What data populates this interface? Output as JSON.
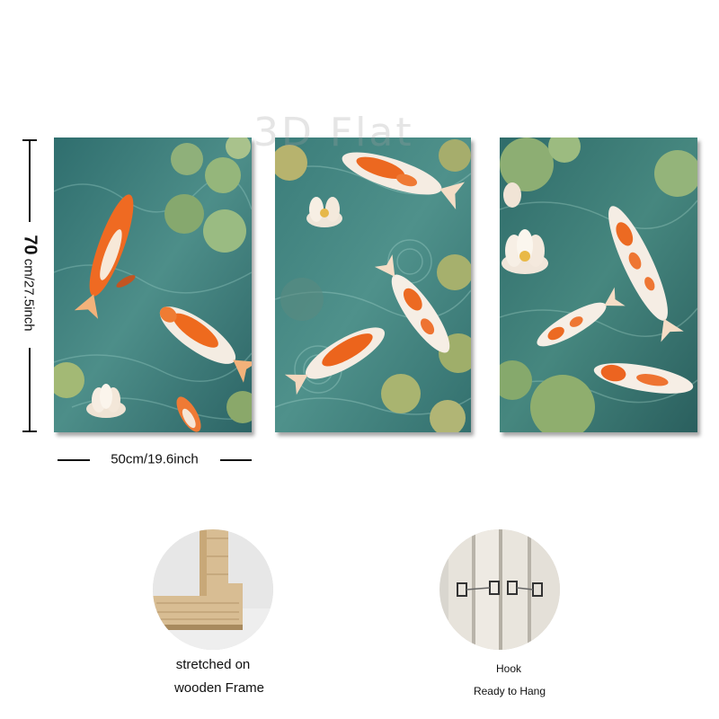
{
  "watermark": "3D Flat",
  "dimensions": {
    "height_value": "70",
    "height_unit": "cm/27.5inch",
    "width_label": "50cm/19.6inch"
  },
  "features": {
    "frame_line1": "stretched on",
    "frame_line2": "wooden Frame",
    "hook_line1": "Hook",
    "hook_line2": "Ready to Hang"
  },
  "colors": {
    "water": "#3f7f7c",
    "koi_orange": "#e8601c",
    "lily_pad": "#8aa86a",
    "frame_wood": "#d9bf94"
  }
}
